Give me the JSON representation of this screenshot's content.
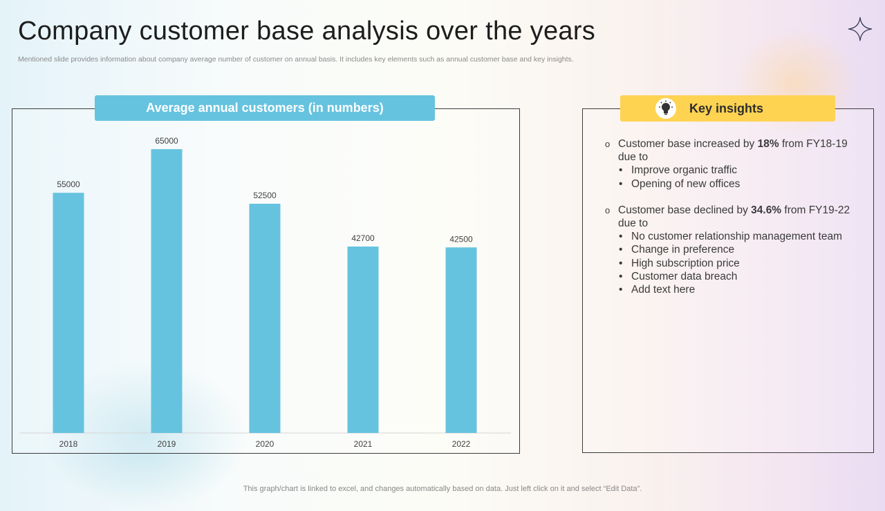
{
  "page": {
    "title": "Company customer base analysis over the years",
    "subtitle": "Mentioned slide provides information about company average number of customer on annual basis. It includes key elements such as annual customer base and key insights.",
    "footer": "This graph/chart is linked to excel,  and changes automatically based on data. Just left click on it and select “Edit Data”."
  },
  "chart_header": "Average annual customers (in numbers)",
  "chart_data": {
    "type": "bar",
    "title": "Average annual customers (in numbers)",
    "categories": [
      "2018",
      "2019",
      "2020",
      "2021",
      "2022"
    ],
    "values": [
      55000,
      65000,
      52500,
      42700,
      42500
    ],
    "data_labels": [
      "55000",
      "65000",
      "52500",
      "42700",
      "42500"
    ],
    "xlabel": "",
    "ylabel": "",
    "ylim": [
      0,
      70000
    ],
    "grid": false,
    "legend": "none",
    "bar_color": "#66c3df"
  },
  "insights": {
    "header": "Key insights",
    "points": [
      {
        "marker": "o",
        "pre": "Customer base increased by ",
        "bold": "18%",
        "post": " from FY18-19 due to",
        "subs": [
          "Improve organic traffic",
          "Opening of new offices"
        ]
      },
      {
        "marker": "o",
        "pre": "Customer base declined by ",
        "bold": "34.6%",
        "post": " from FY19-22 due to",
        "subs": [
          "No customer relationship management team",
          "Change in preference",
          "High subscription price",
          "Customer data breach",
          "Add text here"
        ]
      }
    ],
    "bullet": "•"
  },
  "colors": {
    "accent_blue": "#66c3df",
    "accent_yellow": "#fed352"
  }
}
